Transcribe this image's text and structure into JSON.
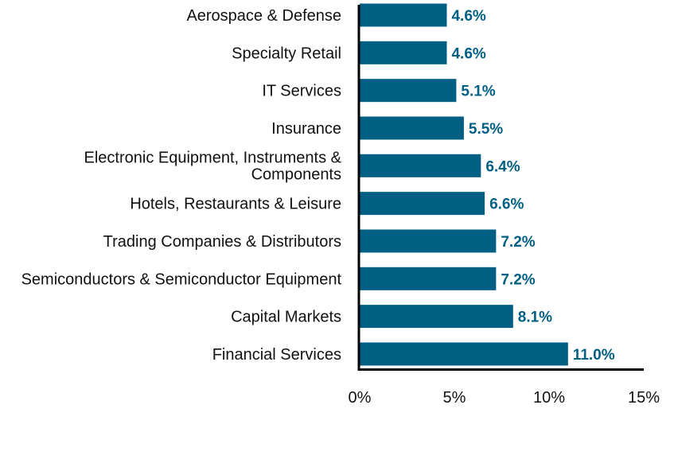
{
  "chart_data": {
    "type": "bar",
    "orientation": "horizontal",
    "categories": [
      "Aerospace & Defense",
      "Specialty Retail",
      "IT Services",
      "Insurance",
      "Electronic Equipment, Instruments & Components",
      "Hotels, Restaurants & Leisure",
      "Trading Companies & Distributors",
      "Semiconductors & Semiconductor Equipment",
      "Capital Markets",
      "Financial Services"
    ],
    "values": [
      4.6,
      4.6,
      5.1,
      5.5,
      6.4,
      6.6,
      7.2,
      7.2,
      8.1,
      11.0
    ],
    "value_labels": [
      "4.6%",
      "4.6%",
      "5.1%",
      "5.5%",
      "6.4%",
      "6.6%",
      "7.2%",
      "7.2%",
      "8.1%",
      "11.0%"
    ],
    "xlim": [
      0,
      15
    ],
    "x_ticks": [
      0,
      5,
      10,
      15
    ],
    "x_tick_labels": [
      "0%",
      "5%",
      "10%",
      "15%"
    ],
    "title": "",
    "xlabel": "",
    "ylabel": "",
    "grid": false,
    "bar_color": "#005f83",
    "label_color": "#005f83"
  }
}
